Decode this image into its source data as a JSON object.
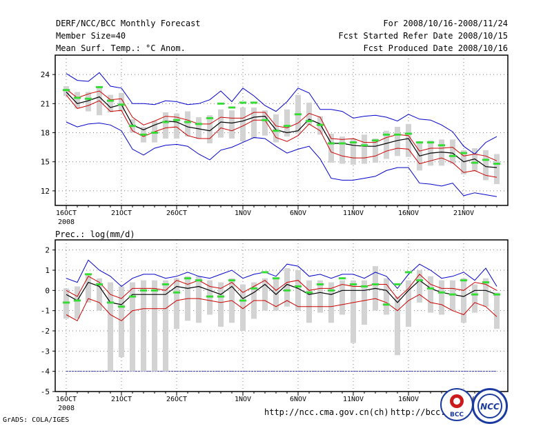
{
  "header": {
    "title": "DERF/NCC/BCC Monthly Forecast",
    "member_size": "Member Size=40",
    "variable": "Mean Surf. Temp.: °C Anom.",
    "period": "For 2008/10/16-2008/11/24",
    "started": "Fcst Started Refer Date 2008/10/15",
    "produced": "Fcst Produced Date 2008/10/16"
  },
  "footer": {
    "credit": "GrADS: COLA/IGES",
    "url1": "http://ncc.cma.gov.cn(ch)",
    "url2": "http://bcc.c"
  },
  "logos": {
    "bcc": "BCC",
    "ncc": "NCC"
  },
  "colors": {
    "envelope": "#0000cc",
    "plusminus": "#cc0000",
    "mean": "#000000",
    "box": "#d3d3d3",
    "marker": "#33dd33",
    "grid": "#777777",
    "refline": "#3333aa"
  },
  "chart_data": [
    {
      "type": "box-plume",
      "title": "Mean Surf. Temp.: °C Anom.",
      "xlabel": "",
      "ylabel": "",
      "x_tick_labels": [
        "16OCT",
        "21OCT",
        "26OCT",
        "1NOV",
        "6NOV",
        "11NOV",
        "16NOV",
        "21NOV"
      ],
      "x_tick_days": [
        0,
        5,
        10,
        16,
        21,
        26,
        31,
        36
      ],
      "x_sublabel": "2008",
      "x_range": [
        -1,
        40
      ],
      "ylim": [
        10.5,
        26
      ],
      "y_ticks": [
        12,
        15,
        18,
        21,
        24
      ],
      "days": [
        0,
        1,
        2,
        3,
        4,
        5,
        6,
        7,
        8,
        9,
        10,
        11,
        12,
        13,
        14,
        15,
        16,
        17,
        18,
        19,
        20,
        21,
        22,
        23,
        24,
        25,
        26,
        27,
        28,
        29,
        30,
        31,
        32,
        33,
        34,
        35,
        36,
        37,
        38,
        39
      ],
      "series": [
        {
          "name": "max",
          "values": [
            24.1,
            23.4,
            23.3,
            24.2,
            22.8,
            22.6,
            21.0,
            21.0,
            20.9,
            21.3,
            21.2,
            20.9,
            21.0,
            21.4,
            22.3,
            21.2,
            22.6,
            21.8,
            20.8,
            20.2,
            21.2,
            22.6,
            22.1,
            20.4,
            20.4,
            20.2,
            19.5,
            19.7,
            19.8,
            19.6,
            19.2,
            19.9,
            19.4,
            19.3,
            18.8,
            18.1,
            16.6,
            15.8,
            17.0,
            17.6
          ]
        },
        {
          "name": "plus_std",
          "values": [
            22.5,
            21.6,
            22.0,
            22.3,
            21.4,
            21.5,
            19.6,
            18.8,
            19.2,
            19.7,
            19.6,
            19.3,
            18.9,
            18.9,
            19.6,
            19.5,
            19.5,
            20.1,
            20.1,
            18.7,
            18.5,
            19.0,
            20.0,
            19.6,
            17.4,
            17.3,
            17.4,
            17.0,
            17.0,
            17.5,
            17.8,
            17.7,
            16.1,
            16.4,
            16.4,
            16.5,
            15.6,
            15.8,
            15.6,
            15.1
          ]
        },
        {
          "name": "mean",
          "values": [
            22.2,
            21.0,
            21.3,
            21.7,
            20.6,
            20.9,
            18.8,
            18.3,
            18.8,
            19.2,
            19.1,
            18.6,
            18.4,
            18.2,
            19.1,
            19.0,
            19.2,
            19.6,
            19.7,
            18.3,
            18.0,
            18.2,
            19.4,
            18.9,
            16.9,
            16.9,
            16.7,
            16.6,
            16.6,
            16.9,
            17.2,
            17.4,
            15.6,
            15.9,
            16.0,
            15.9,
            15.0,
            15.3,
            14.5,
            14.4
          ]
        },
        {
          "name": "minus_std",
          "values": [
            21.9,
            20.5,
            20.8,
            21.3,
            20.2,
            20.3,
            18.2,
            17.6,
            18.1,
            18.5,
            18.6,
            17.7,
            17.4,
            17.4,
            18.5,
            18.2,
            18.7,
            19.3,
            19.3,
            17.5,
            17.1,
            17.7,
            18.9,
            18.2,
            16.0,
            15.6,
            15.4,
            15.4,
            15.6,
            16.1,
            16.4,
            16.3,
            14.8,
            15.1,
            15.4,
            14.9,
            13.9,
            14.1,
            13.6,
            13.4
          ]
        },
        {
          "name": "min",
          "values": [
            19.1,
            18.6,
            18.9,
            19.0,
            18.8,
            18.2,
            16.3,
            15.7,
            16.4,
            16.7,
            16.8,
            16.6,
            15.8,
            15.2,
            16.2,
            16.5,
            17.0,
            17.5,
            17.4,
            16.6,
            15.9,
            16.3,
            16.6,
            15.3,
            13.3,
            13.1,
            13.1,
            13.3,
            13.5,
            14.1,
            14.4,
            14.4,
            12.8,
            12.7,
            12.5,
            12.8,
            11.5,
            11.8,
            11.6,
            11.4
          ]
        }
      ],
      "boxes": {
        "low": [
          21.8,
          20.5,
          20.2,
          19.8,
          20.1,
          20.2,
          18.0,
          17.0,
          17.0,
          17.4,
          17.4,
          17.6,
          17.4,
          16.9,
          17.5,
          17.4,
          17.1,
          17.4,
          17.7,
          17.0,
          17.6,
          17.9,
          18.8,
          17.8,
          14.9,
          14.8,
          14.7,
          14.8,
          14.9,
          15.3,
          15.6,
          15.5,
          14.1,
          14.6,
          14.6,
          14.8,
          13.7,
          14.0,
          13.1,
          12.7
        ],
        "high": [
          22.8,
          22.2,
          22.2,
          22.7,
          21.9,
          22.1,
          19.4,
          18.6,
          19.2,
          20.1,
          20.0,
          20.2,
          19.6,
          19.8,
          20.4,
          20.3,
          20.6,
          20.6,
          20.3,
          19.9,
          20.4,
          21.9,
          21.1,
          19.7,
          17.9,
          17.6,
          17.4,
          17.8,
          17.4,
          18.2,
          18.6,
          18.9,
          16.9,
          17.2,
          17.3,
          17.3,
          16.2,
          16.4,
          16.2,
          15.8
        ]
      },
      "markers": [
        22.4,
        21.6,
        21.5,
        22.7,
        21.3,
        20.9,
        18.7,
        17.8,
        18.0,
        19.1,
        19.3,
        19.1,
        18.9,
        19.5,
        21.0,
        20.6,
        21.1,
        21.1,
        19.3,
        18.2,
        18.7,
        19.9,
        19.2,
        18.8,
        16.9,
        16.9,
        17.0,
        16.7,
        17.2,
        17.8,
        17.8,
        17.9,
        17.0,
        17.0,
        16.7,
        15.6,
        15.9,
        14.9,
        15.2,
        14.8
      ]
    },
    {
      "type": "box-plume",
      "title": "Prec.: log(mm/d)",
      "xlabel": "",
      "ylabel": "",
      "x_tick_labels": [
        "16OCT",
        "21OCT",
        "26OCT",
        "1NOV",
        "6NOV",
        "11NOV",
        "16NOV",
        "21NOV"
      ],
      "x_tick_days": [
        0,
        5,
        10,
        16,
        21,
        26,
        31,
        36
      ],
      "x_sublabel": "2008",
      "x_range": [
        -1,
        40
      ],
      "ylim": [
        -5,
        2.5
      ],
      "y_ticks": [
        -5,
        -4,
        -3,
        -2,
        -1,
        0,
        1,
        2
      ],
      "reference_line": -4,
      "days": [
        0,
        1,
        2,
        3,
        4,
        5,
        6,
        7,
        8,
        9,
        10,
        11,
        12,
        13,
        14,
        15,
        16,
        17,
        18,
        19,
        20,
        21,
        22,
        23,
        24,
        25,
        26,
        27,
        28,
        29,
        30,
        31,
        32,
        33,
        34,
        35,
        36,
        37,
        38,
        39
      ],
      "series": [
        {
          "name": "max",
          "values": [
            0.6,
            0.4,
            1.5,
            1.0,
            0.7,
            0.2,
            0.6,
            0.8,
            0.8,
            0.6,
            0.7,
            0.9,
            0.7,
            0.6,
            0.8,
            1.0,
            0.6,
            0.8,
            0.9,
            0.7,
            1.3,
            1.2,
            0.7,
            0.8,
            0.6,
            0.8,
            0.8,
            0.6,
            0.9,
            0.7,
            0.1,
            0.8,
            1.3,
            1.0,
            0.6,
            0.7,
            0.9,
            0.5,
            1.1,
            0.2
          ]
        },
        {
          "name": "plus_std",
          "values": [
            0.0,
            -0.3,
            0.7,
            0.4,
            -0.2,
            -0.4,
            0.1,
            0.1,
            0.1,
            0.0,
            0.5,
            0.3,
            0.5,
            0.2,
            0.1,
            0.4,
            -0.1,
            0.2,
            0.5,
            0.0,
            0.4,
            0.5,
            0.0,
            0.1,
            0.1,
            0.3,
            0.2,
            0.2,
            0.3,
            0.3,
            -0.4,
            0.1,
            0.8,
            0.3,
            0.1,
            0.1,
            0.0,
            0.4,
            0.3,
            0.0
          ]
        },
        {
          "name": "mean",
          "values": [
            -0.2,
            -0.5,
            0.4,
            0.2,
            -0.6,
            -0.7,
            -0.2,
            -0.2,
            -0.2,
            -0.2,
            0.2,
            0.1,
            0.2,
            0.0,
            -0.2,
            0.2,
            -0.4,
            -0.1,
            0.3,
            -0.2,
            0.3,
            0.1,
            -0.2,
            -0.1,
            -0.2,
            0.0,
            0.0,
            0.0,
            0.1,
            0.0,
            -0.6,
            0.0,
            0.5,
            0.1,
            -0.1,
            -0.2,
            -0.3,
            0.0,
            0.0,
            -0.2
          ]
        },
        {
          "name": "minus_std",
          "values": [
            -1.2,
            -1.5,
            -0.4,
            -0.6,
            -1.2,
            -1.5,
            -1.0,
            -0.9,
            -0.9,
            -0.9,
            -0.5,
            -0.4,
            -0.4,
            -0.5,
            -0.6,
            -0.5,
            -0.9,
            -0.5,
            -0.5,
            -0.8,
            -0.5,
            -0.8,
            -0.8,
            -0.8,
            -0.8,
            -0.7,
            -0.6,
            -0.5,
            -0.4,
            -0.6,
            -1.0,
            -0.5,
            -0.2,
            -0.6,
            -0.7,
            -1.0,
            -1.2,
            -0.6,
            -0.8,
            -1.3
          ]
        },
        {
          "name": "min",
          "values": [
            -4,
            -4,
            -4,
            -4,
            -4,
            -4,
            -4,
            -4,
            -4,
            -4,
            -4,
            -4,
            -4,
            -4,
            -4,
            -4,
            -4,
            -4,
            -4,
            -4,
            -4,
            -4,
            -4,
            -4,
            -4,
            -4,
            -4,
            -4,
            -4,
            -4,
            -4,
            -4,
            -4,
            -4,
            -4,
            -4,
            -4,
            -4,
            -4,
            -4
          ]
        }
      ],
      "boxes": {
        "low": [
          -1.4,
          -1.4,
          -0.6,
          -1.0,
          -4.0,
          -3.3,
          -4.0,
          -4.0,
          -4.0,
          -4.0,
          -1.9,
          -1.5,
          -1.6,
          -1.2,
          -1.8,
          -1.6,
          -2.0,
          -1.4,
          -1.0,
          -1.0,
          -0.8,
          -1.0,
          -1.6,
          -1.1,
          -1.6,
          -1.2,
          -2.6,
          -1.7,
          -1.0,
          -1.2,
          -3.2,
          -1.8,
          -0.6,
          -1.1,
          -1.2,
          -1.0,
          -1.6,
          -1.1,
          -0.8,
          -1.9
        ],
        "high": [
          0.1,
          0.2,
          0.8,
          0.6,
          0.4,
          0.2,
          0.4,
          0.5,
          0.5,
          0.5,
          0.6,
          0.7,
          0.7,
          0.5,
          0.4,
          0.6,
          0.3,
          0.4,
          0.6,
          0.6,
          1.1,
          1.0,
          0.5,
          0.5,
          0.4,
          0.5,
          0.5,
          0.5,
          1.2,
          0.6,
          -0.3,
          0.5,
          1.0,
          0.7,
          0.5,
          0.5,
          0.6,
          0.3,
          0.6,
          -0.1
        ]
      },
      "markers": [
        -0.6,
        -0.5,
        0.8,
        0.3,
        -0.6,
        -0.8,
        -0.3,
        0.0,
        0.0,
        0.3,
        -0.1,
        0.6,
        0.5,
        -0.3,
        -0.3,
        0.5,
        -0.5,
        0.1,
        0.9,
        0.6,
        0.0,
        0.2,
        -0.1,
        0.3,
        0.0,
        0.6,
        0.3,
        0.2,
        0.3,
        -0.7,
        0.3,
        0.9,
        0.5,
        0.1,
        -0.1,
        -0.2,
        0.5,
        -0.2,
        0.4,
        -0.2
      ]
    }
  ]
}
